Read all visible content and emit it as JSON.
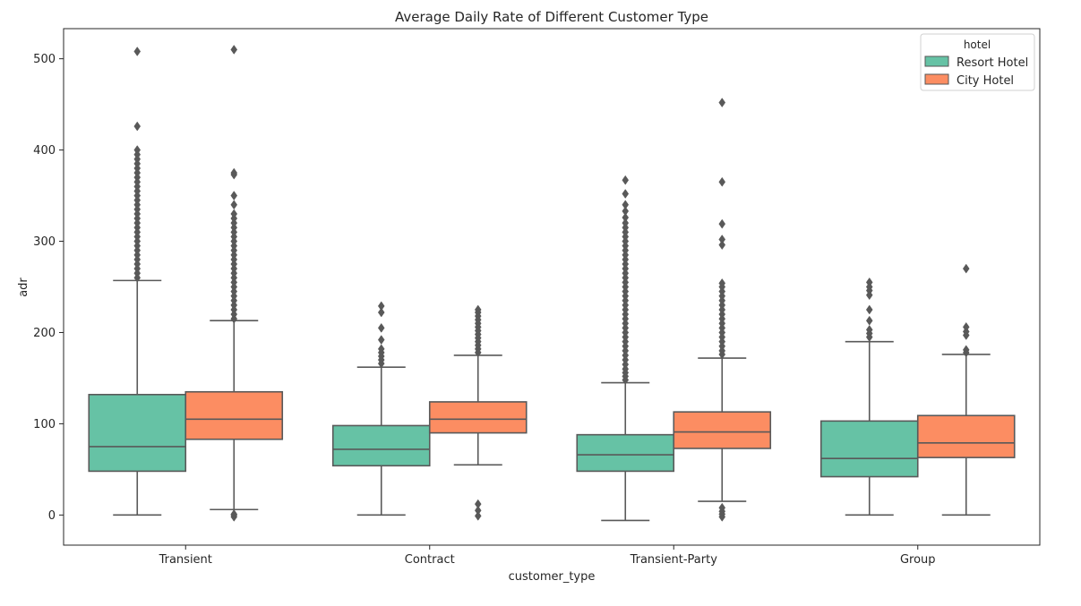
{
  "chart_data": {
    "type": "boxplot",
    "title": "Average Daily Rate of Different Customer Type",
    "xlabel": "customer_type",
    "ylabel": "adr",
    "ylim": [
      -33,
      533
    ],
    "yticks": [
      0,
      100,
      200,
      300,
      400,
      500
    ],
    "grid": false,
    "legend": {
      "title": "hotel",
      "position": "top-right"
    },
    "categories": [
      "Transient",
      "Contract",
      "Transient-Party",
      "Group"
    ],
    "series": [
      {
        "name": "Resort Hotel",
        "color": "#66c2a5",
        "boxes": [
          {
            "whisker_low": 0,
            "q1": 48,
            "median": 75,
            "q3": 132,
            "whisker_high": 257,
            "outliers": [
              260,
              265,
              270,
              275,
              280,
              285,
              290,
              295,
              300,
              305,
              310,
              315,
              320,
              325,
              330,
              335,
              340,
              345,
              350,
              355,
              360,
              365,
              370,
              375,
              380,
              385,
              390,
              395,
              400,
              426,
              508
            ]
          },
          {
            "whisker_low": 0,
            "q1": 54,
            "median": 72,
            "q3": 98,
            "whisker_high": 162,
            "outliers": [
              166,
              170,
              174,
              178,
              182,
              192,
              205,
              222,
              229
            ]
          },
          {
            "whisker_low": -6,
            "q1": 48,
            "median": 66,
            "q3": 88,
            "whisker_high": 145,
            "outliers": [
              148,
              152,
              156,
              160,
              165,
              170,
              175,
              180,
              185,
              190,
              195,
              200,
              205,
              210,
              215,
              220,
              225,
              230,
              235,
              240,
              245,
              250,
              255,
              260,
              265,
              270,
              275,
              280,
              285,
              290,
              295,
              300,
              305,
              310,
              315,
              320,
              326,
              333,
              340,
              352,
              367
            ]
          },
          {
            "whisker_low": 0,
            "q1": 42,
            "median": 62,
            "q3": 103,
            "whisker_high": 190,
            "outliers": [
              195,
              199,
              203,
              213,
              225,
              241,
              246,
              250,
              255
            ]
          }
        ]
      },
      {
        "name": "City Hotel",
        "color": "#fc8d62",
        "boxes": [
          {
            "whisker_low": 6,
            "q1": 83,
            "median": 105,
            "q3": 135,
            "whisker_high": 213,
            "outliers": [
              -2,
              0,
              1,
              215,
              220,
              225,
              230,
              235,
              240,
              245,
              250,
              255,
              260,
              265,
              270,
              275,
              280,
              285,
              290,
              295,
              300,
              305,
              310,
              315,
              320,
              325,
              330,
              340,
              350,
              373,
              375,
              510
            ]
          },
          {
            "whisker_low": 55,
            "q1": 90,
            "median": 105,
            "q3": 124,
            "whisker_high": 175,
            "outliers": [
              -1,
              5,
              12,
              178,
              182,
              186,
              190,
              194,
              198,
              202,
              206,
              210,
              214,
              218,
              222,
              225
            ]
          },
          {
            "whisker_low": 15,
            "q1": 73,
            "median": 91,
            "q3": 113,
            "whisker_high": 172,
            "outliers": [
              -2,
              1,
              4,
              8,
              176,
              180,
              185,
              190,
              195,
              200,
              205,
              210,
              215,
              220,
              225,
              230,
              235,
              240,
              245,
              250,
              254,
              296,
              302,
              319,
              365,
              452
            ]
          },
          {
            "whisker_low": 0,
            "q1": 63,
            "median": 79,
            "q3": 109,
            "whisker_high": 176,
            "outliers": [
              178,
              181,
              197,
              201,
              206,
              270
            ]
          }
        ]
      }
    ]
  }
}
